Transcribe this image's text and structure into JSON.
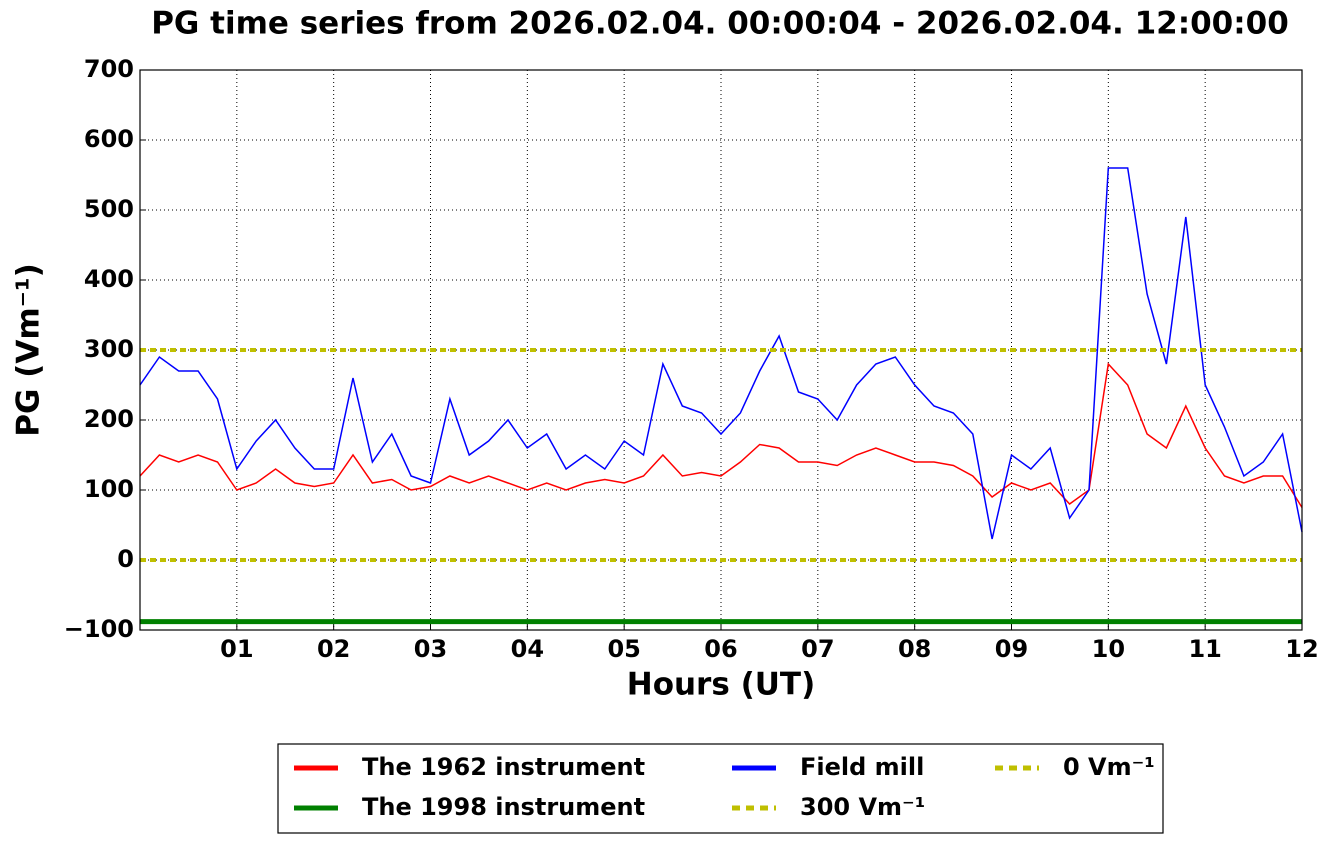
{
  "chart_data": {
    "type": "line",
    "title": "PG time series from 2026.02.04. 00:00:04 - 2026.02.04. 12:00:00",
    "xlabel": "Hours (UT)",
    "ylabel": "PG (Vm⁻¹)",
    "x": [
      0,
      0.2,
      0.4,
      0.6,
      0.8,
      1,
      1.2,
      1.4,
      1.6,
      1.8,
      2,
      2.2,
      2.4,
      2.6,
      2.8,
      3,
      3.2,
      3.4,
      3.6,
      3.8,
      4,
      4.2,
      4.4,
      4.6,
      4.8,
      5,
      5.2,
      5.4,
      5.6,
      5.8,
      6,
      6.2,
      6.4,
      6.6,
      6.8,
      7,
      7.2,
      7.4,
      7.6,
      7.8,
      8,
      8.2,
      8.4,
      8.6,
      8.8,
      9,
      9.2,
      9.4,
      9.6,
      9.8,
      10,
      10.2,
      10.4,
      10.6,
      10.8,
      11,
      11.2,
      11.4,
      11.6,
      11.8,
      12
    ],
    "series": [
      {
        "name": "The 1962 instrument",
        "color": "#ff0000",
        "values": [
          120,
          150,
          140,
          150,
          140,
          100,
          110,
          130,
          110,
          105,
          110,
          150,
          110,
          115,
          100,
          105,
          120,
          110,
          120,
          110,
          100,
          110,
          100,
          110,
          115,
          110,
          120,
          150,
          120,
          125,
          120,
          140,
          165,
          160,
          140,
          140,
          135,
          150,
          160,
          150,
          140,
          140,
          135,
          120,
          90,
          110,
          100,
          110,
          80,
          100,
          280,
          250,
          180,
          160,
          220,
          160,
          120,
          110,
          120,
          120,
          75
        ]
      },
      {
        "name": "The 1998 instrument",
        "color": "#008000",
        "values": [
          -88,
          -88,
          -88,
          -88,
          -88,
          -88,
          -88,
          -88,
          -88,
          -88,
          -88,
          -88,
          -88,
          -88,
          -88,
          -88,
          -88,
          -88,
          -88,
          -88,
          -88,
          -88,
          -88,
          -88,
          -88,
          -88,
          -88,
          -88,
          -88,
          -88,
          -88,
          -88,
          -88,
          -88,
          -88,
          -88,
          -88,
          -88,
          -88,
          -88,
          -88,
          -88,
          -88,
          -88,
          -88,
          -88,
          -88,
          -88,
          -88,
          -88,
          -88,
          -88,
          -88,
          -88,
          -88,
          -88,
          -88,
          -88,
          -88,
          -88,
          -88
        ]
      },
      {
        "name": "Field mill",
        "color": "#0000ff",
        "values": [
          250,
          290,
          270,
          270,
          230,
          130,
          170,
          200,
          160,
          130,
          130,
          260,
          140,
          180,
          120,
          110,
          230,
          150,
          170,
          200,
          160,
          180,
          130,
          150,
          130,
          170,
          150,
          280,
          220,
          210,
          180,
          210,
          270,
          320,
          240,
          230,
          200,
          250,
          280,
          290,
          250,
          220,
          210,
          180,
          30,
          150,
          130,
          160,
          60,
          100,
          560,
          560,
          380,
          280,
          490,
          250,
          190,
          120,
          140,
          180,
          40
        ]
      }
    ],
    "hlines": [
      {
        "name": "300 Vm⁻¹",
        "value": 300,
        "color": "#bfbf00"
      },
      {
        "name": "0 Vm⁻¹",
        "value": 0,
        "color": "#bfbf00"
      }
    ],
    "xlim": [
      0,
      12
    ],
    "xticks": [
      {
        "value": 1,
        "label": "01"
      },
      {
        "value": 2,
        "label": "02"
      },
      {
        "value": 3,
        "label": "03"
      },
      {
        "value": 4,
        "label": "04"
      },
      {
        "value": 5,
        "label": "05"
      },
      {
        "value": 6,
        "label": "06"
      },
      {
        "value": 7,
        "label": "07"
      },
      {
        "value": 8,
        "label": "08"
      },
      {
        "value": 9,
        "label": "09"
      },
      10,
      11,
      12
    ],
    "ylim": [
      -100,
      700
    ],
    "yticks": [
      {
        "value": -100,
        "label": "−100"
      },
      0,
      100,
      200,
      300,
      400,
      500,
      600,
      700
    ],
    "grid": true,
    "legend": "lower center"
  }
}
